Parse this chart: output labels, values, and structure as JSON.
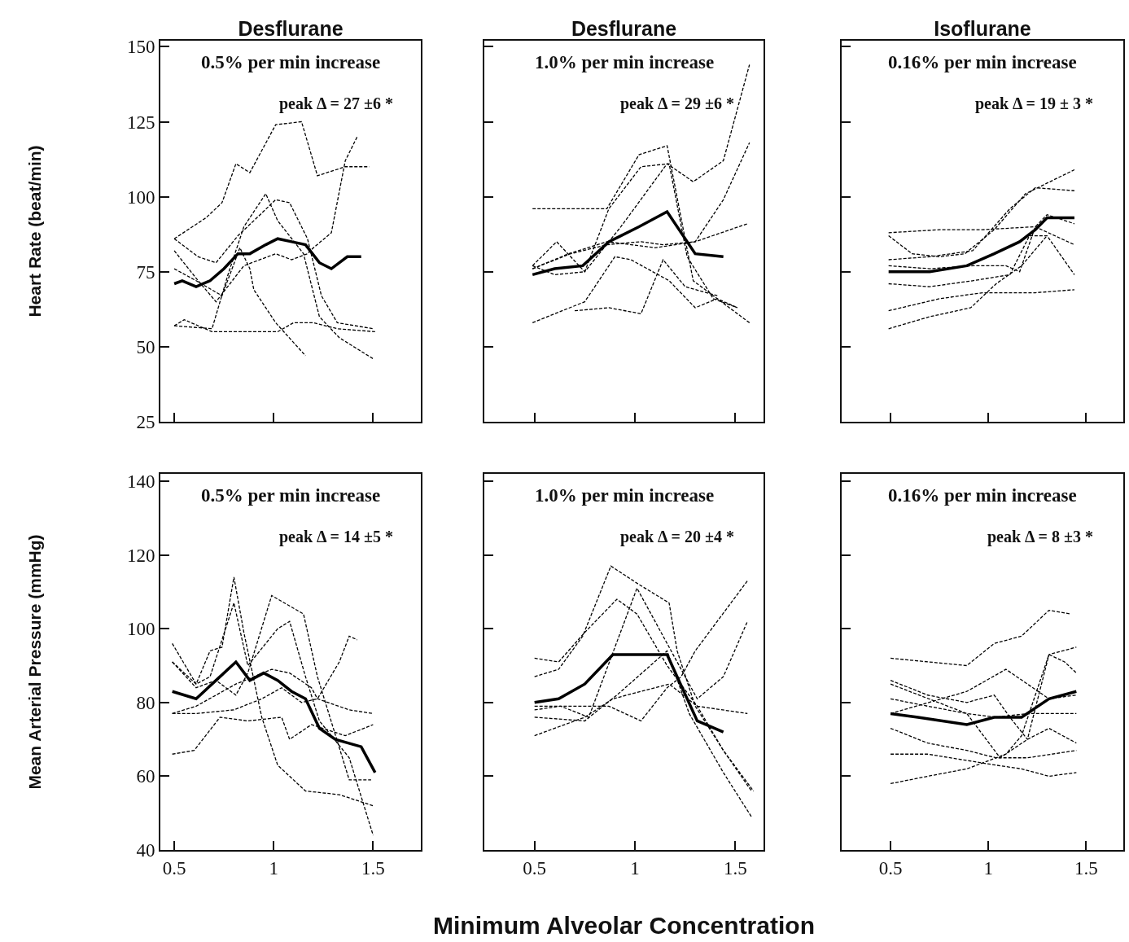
{
  "chart_data": [
    {
      "type": "line",
      "title": "Desflurane",
      "ylabel": "Heart Rate (beat/min)",
      "annotations": [
        "0.5% per min increase",
        "peak Δ = 27 ±6 *"
      ],
      "xlim": [
        0.43,
        1.74
      ],
      "ylim": [
        25,
        152
      ],
      "xticks": [
        0.5,
        1,
        1.5
      ],
      "yticks": [
        25,
        50,
        75,
        100,
        125,
        150
      ],
      "tick_labels": "y",
      "marker": "none",
      "series": [
        {
          "color": "#000000",
          "line_style": "solid",
          "x": [
            0.5,
            0.54,
            0.61,
            0.68,
            0.75,
            0.82,
            0.88,
            0.96,
            1.02,
            1.09,
            1.16,
            1.23,
            1.29,
            1.37,
            1.44
          ],
          "values": [
            71,
            72,
            70,
            72,
            76,
            81,
            81,
            84,
            86,
            85,
            84,
            78,
            76,
            80,
            80
          ]
        },
        {
          "color": "#000000",
          "line_style": "dashed",
          "x": [
            0.5,
            0.66,
            0.74,
            0.81,
            0.88,
            1.01,
            1.14,
            1.22,
            1.36,
            1.48
          ],
          "values": [
            86,
            93,
            98,
            111,
            108,
            124,
            125,
            107,
            110,
            110
          ]
        },
        {
          "color": "#000000",
          "line_style": "dashed",
          "x": [
            0.5,
            0.62,
            0.71,
            0.85,
            1.01,
            1.09,
            1.17,
            1.2,
            1.29,
            1.36,
            1.42
          ],
          "values": [
            82,
            72,
            65,
            77,
            81,
            79,
            81,
            83,
            88,
            112,
            120
          ]
        },
        {
          "color": "#000000",
          "line_style": "dashed",
          "x": [
            0.5,
            0.55,
            0.69,
            0.85,
            1.02,
            1.1,
            1.2,
            1.32,
            1.51
          ],
          "values": [
            57,
            59,
            55,
            55,
            55,
            58,
            58,
            56,
            55
          ]
        },
        {
          "color": "#000000",
          "line_style": "dashed",
          "x": [
            0.5,
            0.69,
            0.77,
            0.85,
            0.96,
            1.02,
            1.15,
            1.23,
            1.33,
            1.5
          ],
          "values": [
            57,
            56,
            74,
            90,
            101,
            92,
            81,
            60,
            53,
            46
          ]
        },
        {
          "color": "#000000",
          "line_style": "dashed",
          "x": [
            0.5,
            0.62,
            0.71,
            0.82,
            0.9,
            1.01,
            1.08,
            1.17,
            1.24,
            1.32,
            1.5
          ],
          "values": [
            86,
            80,
            78,
            87,
            92,
            99,
            98,
            86,
            67,
            58,
            56
          ]
        },
        {
          "color": "#000000",
          "line_style": "dashed",
          "x": [
            0.5,
            0.61,
            0.74,
            0.83,
            0.88,
            0.9,
            1.01,
            1.16
          ],
          "values": [
            76,
            72,
            67,
            83,
            76,
            69,
            58,
            47
          ]
        }
      ]
    },
    {
      "type": "line",
      "title": "Desflurane",
      "annotations": [
        "1.0% per min increase",
        "peak Δ = 29 ±6 *"
      ],
      "xlim": [
        0.25,
        1.64
      ],
      "ylim": [
        25,
        152
      ],
      "xticks": [
        0.5,
        1,
        1.5
      ],
      "yticks": [
        25,
        50,
        75,
        100,
        125,
        150
      ],
      "tick_labels": false,
      "marker": "none",
      "series": [
        {
          "color": "#000000",
          "line_style": "solid",
          "x": [
            0.49,
            0.6,
            0.74,
            0.87,
            1.02,
            1.16,
            1.3,
            1.44
          ],
          "values": [
            74,
            76,
            77,
            85,
            90,
            95,
            81,
            80
          ]
        },
        {
          "color": "#000000",
          "line_style": "dashed",
          "x": [
            0.49,
            0.86,
            1.02,
            1.16,
            1.29,
            1.41,
            1.51
          ],
          "values": [
            96,
            96,
            114,
            117,
            72,
            66,
            63
          ]
        },
        {
          "color": "#000000",
          "line_style": "dashed",
          "x": [
            0.49,
            0.61,
            0.75,
            0.93,
            1.16,
            1.29,
            1.44,
            1.57
          ],
          "values": [
            77,
            85,
            75,
            90,
            111,
            105,
            112,
            144
          ]
        },
        {
          "color": "#000000",
          "line_style": "dashed",
          "x": [
            0.49,
            0.67,
            0.86,
            0.98,
            1.1,
            1.3,
            1.56
          ],
          "values": [
            76,
            81,
            85,
            84,
            83,
            85,
            91
          ]
        },
        {
          "color": "#000000",
          "line_style": "dashed",
          "x": [
            0.49,
            0.75,
            0.9,
            0.98,
            1.17,
            1.3,
            1.41,
            1.57
          ],
          "values": [
            58,
            65,
            80,
            79,
            72,
            63,
            66,
            58
          ]
        },
        {
          "color": "#000000",
          "line_style": "dashed",
          "x": [
            0.49,
            0.6,
            0.75,
            0.87,
            1.03,
            1.17,
            1.26,
            1.39,
            1.51
          ],
          "values": [
            77,
            74,
            75,
            96,
            110,
            111,
            80,
            66,
            63
          ]
        },
        {
          "color": "#000000",
          "line_style": "dashed",
          "x": [
            0.49,
            0.68,
            0.86,
            1.03,
            1.14,
            1.3,
            1.44,
            1.57
          ],
          "values": [
            76,
            81,
            84,
            85,
            84,
            85,
            99,
            118
          ]
        },
        {
          "color": "#000000",
          "line_style": "dashed",
          "x": [
            0.7,
            0.87,
            1.03,
            1.14,
            1.25,
            1.41
          ],
          "values": [
            62,
            63,
            61,
            79,
            70,
            67
          ]
        }
      ]
    },
    {
      "type": "line",
      "title": "Isoflurane",
      "annotations": [
        "0.16% per min increase",
        "peak Δ = 19 ± 3 *"
      ],
      "xlim": [
        0.25,
        1.69
      ],
      "ylim": [
        25,
        152
      ],
      "xticks": [
        0.5,
        1,
        1.5
      ],
      "yticks": [
        25,
        50,
        75,
        100,
        125,
        150
      ],
      "tick_labels": false,
      "marker": "none",
      "series": [
        {
          "color": "#000000",
          "line_style": "solid",
          "x": [
            0.49,
            0.7,
            0.89,
            1.03,
            1.16,
            1.24,
            1.3,
            1.44
          ],
          "values": [
            75,
            75,
            77,
            81,
            85,
            89,
            93,
            93
          ]
        },
        {
          "color": "#000000",
          "line_style": "dashed",
          "x": [
            0.49,
            0.75,
            0.97,
            1.24,
            1.44
          ],
          "values": [
            88,
            89,
            89,
            90,
            84
          ]
        },
        {
          "color": "#000000",
          "line_style": "dashed",
          "x": [
            0.49,
            0.61,
            0.75,
            0.88,
            1.03,
            1.19,
            1.44
          ],
          "values": [
            87,
            81,
            80,
            81,
            89,
            101,
            109
          ]
        },
        {
          "color": "#000000",
          "line_style": "dashed",
          "x": [
            0.49,
            0.7,
            0.92,
            1.11,
            1.24,
            1.44
          ],
          "values": [
            79,
            80,
            82,
            96,
            103,
            102
          ]
        },
        {
          "color": "#000000",
          "line_style": "dashed",
          "x": [
            0.49,
            0.7,
            0.92,
            1.11,
            1.21,
            1.3,
            1.44
          ],
          "values": [
            71,
            70,
            72,
            74,
            87,
            87,
            74
          ]
        },
        {
          "color": "#000000",
          "line_style": "dashed",
          "x": [
            0.49,
            0.75,
            0.97,
            1.24,
            1.44
          ],
          "values": [
            62,
            66,
            68,
            68,
            69
          ]
        },
        {
          "color": "#000000",
          "line_style": "dashed",
          "x": [
            0.49,
            0.7,
            0.91,
            1.04,
            1.17,
            1.3
          ],
          "values": [
            56,
            60,
            63,
            71,
            77,
            87
          ]
        },
        {
          "color": "#000000",
          "line_style": "dashed",
          "x": [
            0.49,
            0.7,
            0.92,
            1.09,
            1.16,
            1.24,
            1.3,
            1.44
          ],
          "values": [
            77,
            76,
            77,
            77,
            75,
            90,
            94,
            91
          ]
        }
      ]
    },
    {
      "type": "line",
      "ylabel": "Mean Arterial Pressure (mmHg)",
      "annotations": [
        "0.5% per min increase",
        "peak Δ = 14 ±5 *"
      ],
      "xlim": [
        0.43,
        1.74
      ],
      "ylim": [
        40,
        142
      ],
      "xticks": [
        0.5,
        1,
        1.5
      ],
      "yticks": [
        40,
        60,
        80,
        100,
        120,
        140
      ],
      "marker": "none",
      "series": [
        {
          "color": "#000000",
          "line_style": "solid",
          "x": [
            0.49,
            0.61,
            0.71,
            0.81,
            0.88,
            0.95,
            1.02,
            1.09,
            1.16,
            1.23,
            1.31,
            1.44,
            1.51
          ],
          "values": [
            83,
            81,
            86,
            91,
            86,
            88,
            86,
            83,
            81,
            73,
            70,
            68,
            61
          ]
        },
        {
          "color": "#000000",
          "line_style": "dashed",
          "x": [
            0.49,
            0.61,
            0.68,
            0.74,
            0.8,
            0.85,
            0.94,
            1.02,
            1.16,
            1.33,
            1.5
          ],
          "values": [
            96,
            85,
            94,
            95,
            114,
            99,
            76,
            63,
            56,
            55,
            52
          ]
        },
        {
          "color": "#000000",
          "line_style": "dashed",
          "x": [
            0.49,
            0.61,
            0.68,
            0.8,
            0.87,
            1.02,
            1.08,
            1.16,
            1.23,
            1.38,
            1.5
          ],
          "values": [
            91,
            85,
            87,
            107,
            90,
            100,
            102,
            87,
            75,
            65,
            44
          ]
        },
        {
          "color": "#000000",
          "line_style": "dashed",
          "x": [
            0.49,
            0.61,
            0.81,
            0.99,
            1.08,
            1.19,
            1.22,
            1.38,
            1.5
          ],
          "values": [
            77,
            79,
            85,
            89,
            88,
            84,
            81,
            78,
            77
          ]
        },
        {
          "color": "#000000",
          "line_style": "dashed",
          "x": [
            0.49,
            0.61,
            0.8,
            0.94,
            1.04,
            1.14,
            1.22,
            1.33,
            1.38,
            1.42
          ],
          "values": [
            77,
            77,
            78,
            81,
            84,
            80,
            81,
            91,
            98,
            97
          ]
        },
        {
          "color": "#000000",
          "line_style": "dashed",
          "x": [
            0.49,
            0.6,
            0.73,
            0.87,
            1.04,
            1.08,
            1.19,
            1.36,
            1.5
          ],
          "values": [
            66,
            67,
            76,
            75,
            76,
            70,
            74,
            71,
            74
          ]
        },
        {
          "color": "#000000",
          "line_style": "dashed",
          "x": [
            0.49,
            0.61,
            0.71,
            0.81,
            0.87,
            0.99,
            1.15,
            1.22,
            1.38,
            1.49
          ],
          "values": [
            91,
            84,
            86,
            82,
            88,
            109,
            104,
            87,
            59,
            59
          ]
        }
      ]
    },
    {
      "type": "line",
      "xlabel": "Minimum Alveolar Concentration",
      "annotations": [
        "1.0% per min increase",
        "peak Δ = 20 ±4 *"
      ],
      "xlim": [
        0.25,
        1.64
      ],
      "ylim": [
        40,
        142
      ],
      "xticks": [
        0.5,
        1,
        1.5
      ],
      "yticks": [
        40,
        60,
        80,
        100,
        120,
        140
      ],
      "tick_labels": "x",
      "marker": "none",
      "series": [
        {
          "color": "#000000",
          "line_style": "solid",
          "x": [
            0.5,
            0.62,
            0.75,
            0.89,
            1.02,
            1.16,
            1.31,
            1.44
          ],
          "values": [
            80,
            81,
            85,
            93,
            93,
            93,
            75,
            72
          ]
        },
        {
          "color": "#000000",
          "line_style": "dashed",
          "x": [
            0.5,
            0.62,
            0.74,
            0.88,
            1.02,
            1.17,
            1.21,
            1.3,
            1.44,
            1.59
          ],
          "values": [
            87,
            89,
            98,
            117,
            112,
            107,
            94,
            79,
            67,
            56
          ]
        },
        {
          "color": "#000000",
          "line_style": "dashed",
          "x": [
            0.5,
            0.62,
            0.75,
            0.91,
            1.01,
            1.16,
            1.31,
            1.44,
            1.58
          ],
          "values": [
            92,
            91,
            99,
            108,
            104,
            90,
            79,
            67,
            56
          ]
        },
        {
          "color": "#000000",
          "line_style": "dashed",
          "x": [
            0.5,
            0.63,
            0.77,
            0.87,
            1.03,
            1.16,
            1.23,
            1.3,
            1.56
          ],
          "values": [
            78,
            79,
            79,
            79,
            75,
            84,
            87,
            94,
            113
          ]
        },
        {
          "color": "#000000",
          "line_style": "dashed",
          "x": [
            0.5,
            0.75,
            0.89,
            1.03,
            1.17,
            1.31,
            1.56
          ],
          "values": [
            71,
            76,
            81,
            83,
            85,
            79,
            77
          ]
        },
        {
          "color": "#000000",
          "line_style": "dashed",
          "x": [
            0.5,
            0.75,
            0.91,
            1.16,
            1.27,
            1.44,
            1.58
          ],
          "values": [
            76,
            75,
            82,
            94,
            77,
            61,
            49
          ]
        },
        {
          "color": "#000000",
          "line_style": "dashed",
          "x": [
            0.5,
            0.63,
            0.77,
            1.01,
            1.16,
            1.31,
            1.44,
            1.56
          ],
          "values": [
            79,
            79,
            76,
            111,
            96,
            81,
            87,
            102
          ]
        }
      ]
    },
    {
      "type": "line",
      "annotations": [
        "0.16% per min increase",
        "peak Δ = 8 ±3 *"
      ],
      "xlim": [
        0.25,
        1.69
      ],
      "ylim": [
        40,
        142
      ],
      "xticks": [
        0.5,
        1,
        1.5
      ],
      "yticks": [
        40,
        60,
        80,
        100,
        120,
        140
      ],
      "tick_labels": "x",
      "marker": "none",
      "series": [
        {
          "color": "#000000",
          "line_style": "solid",
          "x": [
            0.5,
            0.64,
            0.89,
            1.03,
            1.17,
            1.31,
            1.45
          ],
          "values": [
            77,
            76,
            74,
            76,
            76,
            81,
            83
          ]
        },
        {
          "color": "#000000",
          "line_style": "dashed",
          "x": [
            0.5,
            0.89,
            1.03,
            1.17,
            1.31,
            1.42
          ],
          "values": [
            92,
            90,
            96,
            98,
            105,
            104
          ]
        },
        {
          "color": "#000000",
          "line_style": "dashed",
          "x": [
            0.5,
            0.69,
            0.89,
            1.03,
            1.11,
            1.2,
            1.31,
            1.45
          ],
          "values": [
            86,
            82,
            80,
            82,
            76,
            70,
            93,
            95
          ]
        },
        {
          "color": "#000000",
          "line_style": "dashed",
          "x": [
            0.5,
            0.89,
            1.04,
            1.2,
            1.45
          ],
          "values": [
            85,
            77,
            76,
            77,
            77
          ]
        },
        {
          "color": "#000000",
          "line_style": "dashed",
          "x": [
            0.5,
            0.69,
            0.89,
            1.06,
            1.2,
            1.31,
            1.45
          ],
          "values": [
            81,
            79,
            77,
            65,
            70,
            73,
            69
          ]
        },
        {
          "color": "#000000",
          "line_style": "dashed",
          "x": [
            0.5,
            0.69,
            0.89,
            1.04,
            1.2,
            1.45
          ],
          "values": [
            73,
            69,
            67,
            65,
            65,
            67
          ]
        },
        {
          "color": "#000000",
          "line_style": "dashed",
          "x": [
            0.5,
            0.69,
            1.04,
            1.17,
            1.31,
            1.45
          ],
          "values": [
            66,
            66,
            63,
            62,
            60,
            61
          ]
        },
        {
          "color": "#000000",
          "line_style": "dashed",
          "x": [
            0.5,
            0.69,
            0.89,
            1.09,
            1.17,
            1.31,
            1.39,
            1.45
          ],
          "values": [
            58,
            60,
            62,
            66,
            71,
            93,
            91,
            88
          ]
        },
        {
          "color": "#000000",
          "line_style": "dashed",
          "x": [
            0.5,
            0.89,
            1.09,
            1.31,
            1.45
          ],
          "values": [
            77,
            83,
            89,
            81,
            82
          ]
        }
      ]
    }
  ]
}
